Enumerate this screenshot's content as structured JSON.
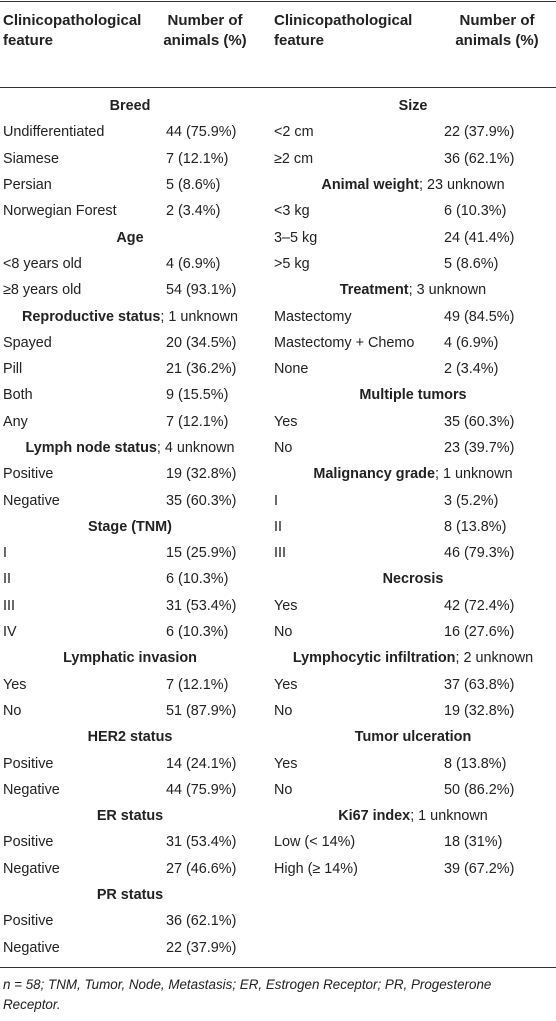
{
  "header": {
    "left_feature": "Clinicopathological feature",
    "left_count": "Number of animals (%)",
    "right_feature": "Clinicopathological feature",
    "right_count": "Number of animals (%)"
  },
  "left_rows": [
    {
      "type": "section",
      "bold": "Breed",
      "rest": ""
    },
    {
      "type": "row",
      "label": "Undifferentiated",
      "value": "44 (75.9%)"
    },
    {
      "type": "row",
      "label": "Siamese",
      "value": "7 (12.1%)"
    },
    {
      "type": "row",
      "label": "Persian",
      "value": "5 (8.6%)"
    },
    {
      "type": "row",
      "label": "Norwegian Forest",
      "value": "2 (3.4%)"
    },
    {
      "type": "section",
      "bold": "Age",
      "rest": ""
    },
    {
      "type": "row",
      "label": "<8 years old",
      "value": "4 (6.9%)"
    },
    {
      "type": "row",
      "label": "≥8 years old",
      "value": "54 (93.1%)"
    },
    {
      "type": "section",
      "bold": "Reproductive status",
      "rest": "; 1 unknown"
    },
    {
      "type": "row",
      "label": "Spayed",
      "value": "20 (34.5%)"
    },
    {
      "type": "row",
      "label": "Pill",
      "value": "21 (36.2%)"
    },
    {
      "type": "row",
      "label": "Both",
      "value": "9 (15.5%)"
    },
    {
      "type": "row",
      "label": "Any",
      "value": "7 (12.1%)"
    },
    {
      "type": "section",
      "bold": "Lymph node status",
      "rest": "; 4 unknown"
    },
    {
      "type": "row",
      "label": "Positive",
      "value": "19 (32.8%)"
    },
    {
      "type": "row",
      "label": "Negative",
      "value": "35 (60.3%)"
    },
    {
      "type": "section",
      "bold": "Stage (TNM)",
      "rest": ""
    },
    {
      "type": "row",
      "label": "I",
      "value": "15 (25.9%)"
    },
    {
      "type": "row",
      "label": "II",
      "value": "6 (10.3%)"
    },
    {
      "type": "row",
      "label": "III",
      "value": "31 (53.4%)"
    },
    {
      "type": "row",
      "label": "IV",
      "value": "6 (10.3%)"
    },
    {
      "type": "section",
      "bold": "Lymphatic invasion",
      "rest": ""
    },
    {
      "type": "row",
      "label": "Yes",
      "value": "7 (12.1%)"
    },
    {
      "type": "row",
      "label": "No",
      "value": "51 (87.9%)"
    },
    {
      "type": "section",
      "bold": "HER2 status",
      "rest": ""
    },
    {
      "type": "row",
      "label": "Positive",
      "value": "14 (24.1%)"
    },
    {
      "type": "row",
      "label": "Negative",
      "value": "44 (75.9%)"
    },
    {
      "type": "section",
      "bold": "ER status",
      "rest": ""
    },
    {
      "type": "row",
      "label": "Positive",
      "value": "31 (53.4%)"
    },
    {
      "type": "row",
      "label": "Negative",
      "value": "27 (46.6%)"
    },
    {
      "type": "section",
      "bold": "PR status",
      "rest": ""
    },
    {
      "type": "row",
      "label": "Positive",
      "value": "36 (62.1%)"
    },
    {
      "type": "row",
      "label": "Negative",
      "value": "22 (37.9%)"
    }
  ],
  "right_rows": [
    {
      "type": "section",
      "bold": "Size",
      "rest": ""
    },
    {
      "type": "row",
      "label": "<2 cm",
      "value": "22 (37.9%)"
    },
    {
      "type": "row",
      "label": "≥2 cm",
      "value": "36 (62.1%)"
    },
    {
      "type": "section",
      "bold": "Animal weight",
      "rest": "; 23 unknown"
    },
    {
      "type": "row",
      "label": "<3 kg",
      "value": "6 (10.3%)"
    },
    {
      "type": "row",
      "label": "3–5 kg",
      "value": "24 (41.4%)"
    },
    {
      "type": "row",
      "label": ">5 kg",
      "value": "5 (8.6%)"
    },
    {
      "type": "section",
      "bold": "Treatment",
      "rest": "; 3 unknown"
    },
    {
      "type": "row",
      "label": "Mastectomy",
      "value": "49 (84.5%)"
    },
    {
      "type": "row",
      "label": "Mastectomy + Chemo",
      "value": "4 (6.9%)"
    },
    {
      "type": "row",
      "label": "None",
      "value": "2 (3.4%)"
    },
    {
      "type": "section",
      "bold": "Multiple tumors",
      "rest": ""
    },
    {
      "type": "row",
      "label": "Yes",
      "value": "35 (60.3%)"
    },
    {
      "type": "row",
      "label": "No",
      "value": "23 (39.7%)"
    },
    {
      "type": "section",
      "bold": "Malignancy grade",
      "rest": "; 1 unknown"
    },
    {
      "type": "row",
      "label": "I",
      "value": "3 (5.2%)"
    },
    {
      "type": "row",
      "label": "II",
      "value": "8 (13.8%)"
    },
    {
      "type": "row",
      "label": "III",
      "value": "46 (79.3%)"
    },
    {
      "type": "section",
      "bold": "Necrosis",
      "rest": ""
    },
    {
      "type": "row",
      "label": "Yes",
      "value": "42 (72.4%)"
    },
    {
      "type": "row",
      "label": "No",
      "value": "16 (27.6%)"
    },
    {
      "type": "section",
      "bold": "Lymphocytic infiltration",
      "rest": "; 2 unknown"
    },
    {
      "type": "row",
      "label": "Yes",
      "value": "37 (63.8%)"
    },
    {
      "type": "row",
      "label": "No",
      "value": "19 (32.8%)"
    },
    {
      "type": "section",
      "bold": "Tumor ulceration",
      "rest": ""
    },
    {
      "type": "row",
      "label": "Yes",
      "value": "8 (13.8%)"
    },
    {
      "type": "row",
      "label": "No",
      "value": "50 (86.2%)"
    },
    {
      "type": "section",
      "bold": "Ki67 index",
      "rest": "; 1 unknown"
    },
    {
      "type": "row",
      "label": "Low (< 14%)",
      "value": "18 (31%)"
    },
    {
      "type": "row",
      "label": "High (≥ 14%)",
      "value": "39 (67.2%)"
    }
  ],
  "footnote": "n = 58; TNM, Tumor, Node, Metastasis; ER, Estrogen Receptor; PR, Progesterone Receptor."
}
